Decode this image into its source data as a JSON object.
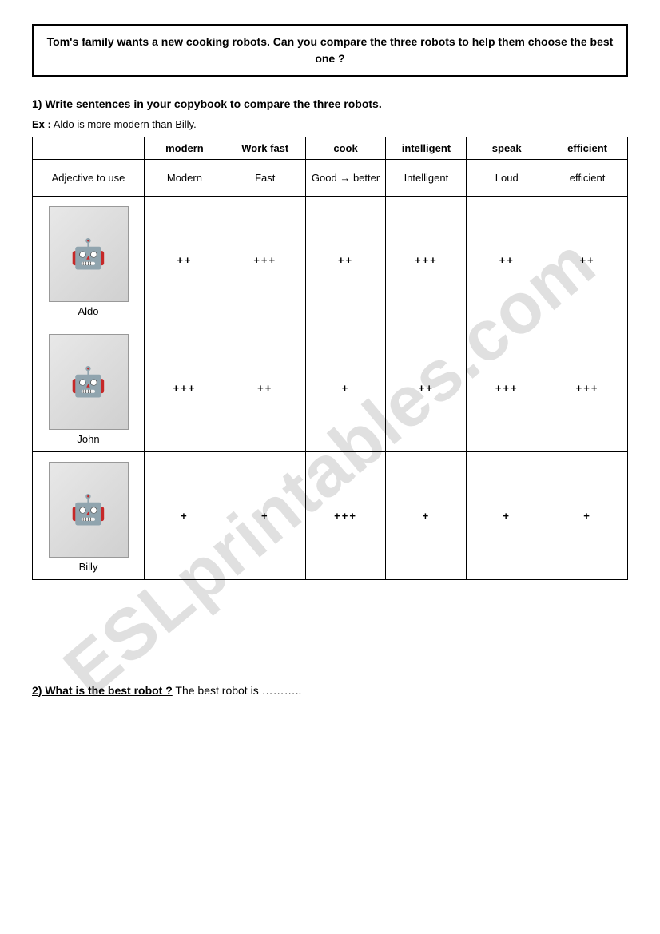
{
  "watermark": "ESLprintables.com",
  "intro": "Tom's family wants a new cooking robots. Can you compare the three robots to help them choose the best one ?",
  "section1": {
    "title": "1) Write sentences in your copybook to compare the three robots.",
    "example_label": "Ex :",
    "example_text": " Aldo is more modern than Billy."
  },
  "table": {
    "first_header": "",
    "columns": [
      "modern",
      "Work fast",
      "cook",
      "intelligent",
      "speak",
      "efficient"
    ],
    "adjective_label": "Adjective to use",
    "adjectives": [
      "Modern",
      "Fast",
      "Good → better",
      "Intelligent",
      "Loud",
      "efficient"
    ],
    "robots": [
      {
        "name": "Aldo",
        "icon": "🤖",
        "ratings": [
          "++",
          "+++",
          "++",
          "+++",
          "++",
          "++"
        ]
      },
      {
        "name": "John",
        "icon": "🤖",
        "ratings": [
          "+++",
          "++",
          "+",
          "++",
          "+++",
          "+++"
        ]
      },
      {
        "name": "Billy",
        "icon": "🤖",
        "ratings": [
          "+",
          "+",
          "+++",
          "+",
          "+",
          "+"
        ]
      }
    ]
  },
  "section2": {
    "question_bold": "2) What is the best robot ?",
    "answer_lead": " The best robot is ……….."
  },
  "colors": {
    "border": "#000000",
    "background": "#ffffff",
    "watermark": "rgba(0,0,0,0.12)"
  }
}
